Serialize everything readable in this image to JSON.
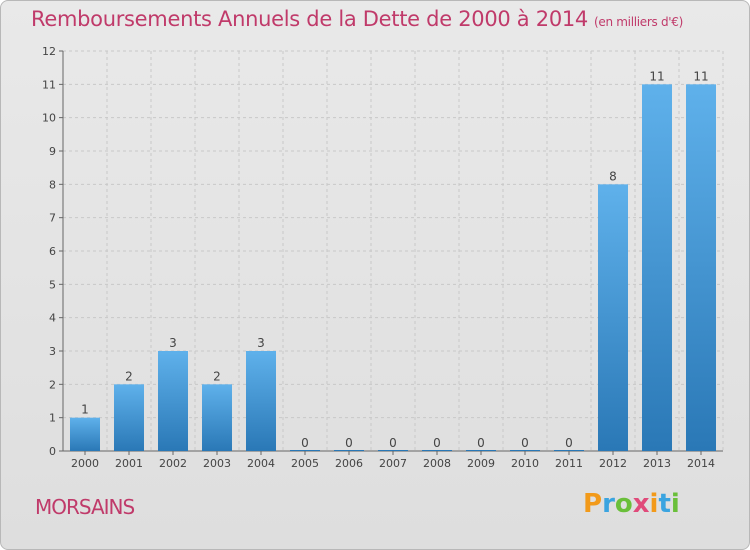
{
  "header": {
    "title": "Remboursements Annuels de la Dette de 2000 à 2014",
    "subtitle": "(en milliers d'€)"
  },
  "footer": {
    "place_name": "MORSAINS",
    "logo_text": "Proxiti"
  },
  "colors": {
    "title": "#c03a6a",
    "bar_top": "#5fb1eb",
    "bar_bottom": "#2a78b6",
    "grid": "#c8c8c8",
    "axis": "#666666"
  },
  "chart_data": {
    "type": "bar",
    "categories": [
      "2000",
      "2001",
      "2002",
      "2003",
      "2004",
      "2005",
      "2006",
      "2007",
      "2008",
      "2009",
      "2010",
      "2011",
      "2012",
      "2013",
      "2014"
    ],
    "values": [
      1,
      2,
      3,
      2,
      3,
      0,
      0,
      0,
      0,
      0,
      0,
      0,
      8,
      11,
      11
    ],
    "data_labels": [
      "1",
      "2",
      "3",
      "2",
      "3",
      "0",
      "0",
      "0",
      "0",
      "0",
      "0",
      "0",
      "8",
      "11",
      "11"
    ],
    "y_ticks": [
      "0",
      "1",
      "2",
      "3",
      "4",
      "5",
      "6",
      "7",
      "8",
      "9",
      "10",
      "11",
      "12"
    ],
    "ylim": [
      0,
      12
    ],
    "grid": true,
    "legend": "none"
  }
}
